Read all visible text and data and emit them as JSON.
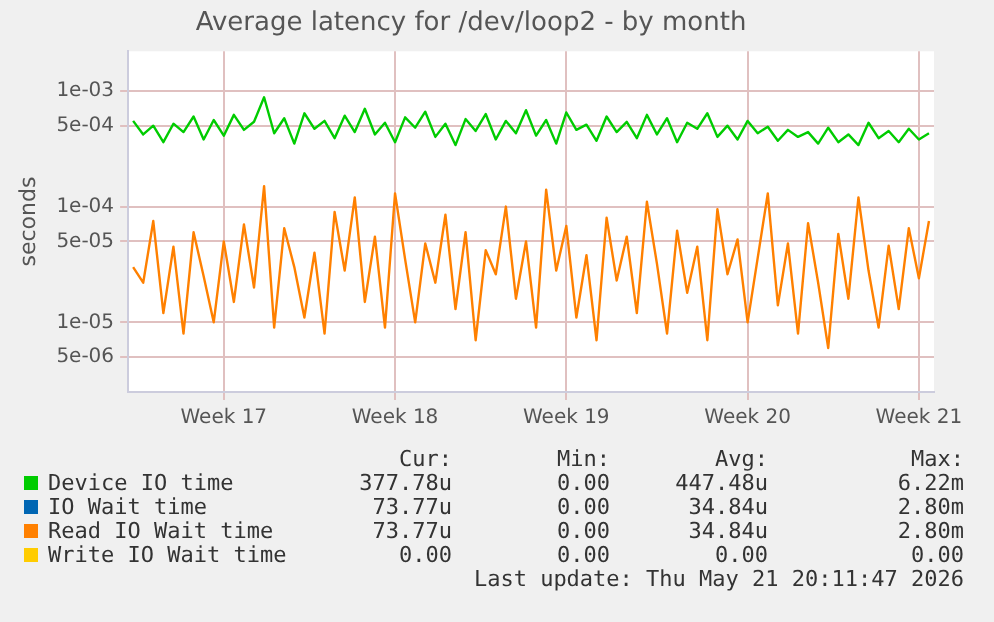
{
  "chart_data": {
    "type": "line",
    "title": "Average latency for /dev/loop2 - by month",
    "ylabel": "seconds",
    "log": "y",
    "grid": true,
    "legend": "bottom",
    "marker": "none",
    "line_style": "solid",
    "categories": [
      null,
      null,
      null,
      null,
      null,
      null,
      null,
      null,
      null,
      "Week 17",
      null,
      null,
      null,
      null,
      null,
      null,
      null,
      null,
      null,
      null,
      null,
      null,
      null,
      null,
      null,
      null,
      "Week 18",
      null,
      null,
      null,
      null,
      null,
      null,
      null,
      null,
      null,
      null,
      null,
      null,
      null,
      null,
      null,
      null,
      "Week 19",
      null,
      null,
      null,
      null,
      null,
      null,
      null,
      null,
      null,
      null,
      null,
      null,
      null,
      null,
      null,
      null,
      null,
      "Week 20",
      null,
      null,
      null,
      null,
      null,
      null,
      null,
      null,
      null,
      null,
      null,
      null,
      null,
      null,
      null,
      null,
      "Week 21",
      null
    ],
    "ylim": [
      2.5e-06,
      0.0022
    ],
    "yticks": [
      {
        "value": 5e-06,
        "label": "5e-06"
      },
      {
        "value": 1e-05,
        "label": "1e-05"
      },
      {
        "value": 5e-05,
        "label": "5e-05"
      },
      {
        "value": 0.0001,
        "label": "1e-04"
      },
      {
        "value": 0.0005,
        "label": "5e-04"
      },
      {
        "value": 0.001,
        "label": "1e-03"
      }
    ],
    "series": [
      {
        "name": "Device IO time",
        "color": "#00cc00",
        "values": [
          0.00055,
          0.00042,
          0.0005,
          0.00036,
          0.00052,
          0.00044,
          0.0006,
          0.00038,
          0.00056,
          0.00041,
          0.00062,
          0.00046,
          0.00054,
          0.00088,
          0.00043,
          0.00058,
          0.00035,
          0.00064,
          0.00047,
          0.00055,
          0.00039,
          0.00061,
          0.00044,
          0.0007,
          0.00042,
          0.00053,
          0.00036,
          0.00059,
          0.00048,
          0.00066,
          0.0004,
          0.00052,
          0.00034,
          0.00057,
          0.00045,
          0.00063,
          0.00038,
          0.00055,
          0.00043,
          0.00068,
          0.00041,
          0.00056,
          0.00035,
          0.00065,
          0.00046,
          0.00051,
          0.00037,
          0.0006,
          0.00044,
          0.00054,
          0.00039,
          0.00062,
          0.00042,
          0.00058,
          0.00036,
          0.00053,
          0.00047,
          0.00064,
          0.0004,
          0.0005,
          0.00038,
          0.00055,
          0.00043,
          0.00049,
          0.00037,
          0.00046,
          0.0004,
          0.00044,
          0.00035,
          0.00048,
          0.00036,
          0.00042,
          0.00034,
          0.00053,
          0.00039,
          0.00045,
          0.00036,
          0.00047,
          0.00038,
          0.00043
        ]
      },
      {
        "name": "IO Wait time",
        "color": "#0066b3",
        "values": [
          null,
          null,
          null,
          null,
          null,
          null,
          null,
          null,
          null,
          null,
          null,
          null,
          null,
          null,
          null,
          null,
          null,
          null,
          null,
          null,
          null,
          null,
          null,
          null,
          null,
          null,
          null,
          null,
          null,
          null,
          null,
          null,
          null,
          null,
          null,
          null,
          null,
          null,
          null,
          null,
          null,
          null,
          null,
          null,
          null,
          null,
          null,
          null,
          null,
          null,
          null,
          null,
          null,
          null,
          null,
          null,
          null,
          null,
          null,
          null,
          null,
          null,
          null,
          null,
          null,
          null,
          null,
          null,
          null,
          null,
          null,
          null,
          null,
          null,
          null,
          null,
          null,
          null,
          null,
          null
        ]
      },
      {
        "name": "Read IO Wait time",
        "color": "#ff8000",
        "values": [
          3e-05,
          2.2e-05,
          7.5e-05,
          1.2e-05,
          4.5e-05,
          8e-06,
          6e-05,
          2.5e-05,
          1e-05,
          5e-05,
          1.5e-05,
          7e-05,
          2e-05,
          0.00015,
          9e-06,
          6.5e-05,
          3e-05,
          1.1e-05,
          4e-05,
          8e-06,
          9e-05,
          2.8e-05,
          0.00012,
          1.5e-05,
          5.5e-05,
          9e-06,
          0.00013,
          3.5e-05,
          1e-05,
          4.8e-05,
          2.2e-05,
          8.5e-05,
          1.3e-05,
          6e-05,
          7e-06,
          4.2e-05,
          2.6e-05,
          0.0001,
          1.6e-05,
          5e-05,
          9e-06,
          0.00014,
          2.8e-05,
          6.8e-05,
          1.1e-05,
          3.8e-05,
          7e-06,
          8e-05,
          2.3e-05,
          5.5e-05,
          1.2e-05,
          0.00011,
          3.2e-05,
          8e-06,
          6.2e-05,
          1.8e-05,
          4.5e-05,
          7e-06,
          9.5e-05,
          2.6e-05,
          5.2e-05,
          1e-05,
          3.6e-05,
          0.00013,
          1.4e-05,
          4.8e-05,
          8e-06,
          7.2e-05,
          2.2e-05,
          6e-06,
          5.8e-05,
          1.6e-05,
          0.00012,
          2.8e-05,
          9e-06,
          4.6e-05,
          1.3e-05,
          6.5e-05,
          2.4e-05,
          7.5e-05
        ]
      },
      {
        "name": "Write IO Wait time",
        "color": "#ffcc00",
        "values": [
          null,
          null,
          null,
          null,
          null,
          null,
          null,
          null,
          null,
          null,
          null,
          null,
          null,
          null,
          null,
          null,
          null,
          null,
          null,
          null,
          null,
          null,
          null,
          null,
          null,
          null,
          null,
          null,
          null,
          null,
          null,
          null,
          null,
          null,
          null,
          null,
          null,
          null,
          null,
          null,
          null,
          null,
          null,
          null,
          null,
          null,
          null,
          null,
          null,
          null,
          null,
          null,
          null,
          null,
          null,
          null,
          null,
          null,
          null,
          null,
          null,
          null,
          null,
          null,
          null,
          null,
          null,
          null,
          null,
          null,
          null,
          null,
          null,
          null,
          null,
          null,
          null,
          null,
          null,
          null
        ]
      }
    ],
    "annotations": [
      "Cur:",
      "Min:",
      "Avg:",
      "Max:",
      "377.78u",
      "0.00",
      "447.48u",
      "6.22m",
      "73.77u",
      "0.00",
      "34.84u",
      "2.80m",
      "73.77u",
      "0.00",
      "34.84u",
      "2.80m",
      "0.00",
      "0.00",
      "0.00",
      "0.00",
      "Last update: Thu May 21 20:11:47 2026"
    ]
  }
}
